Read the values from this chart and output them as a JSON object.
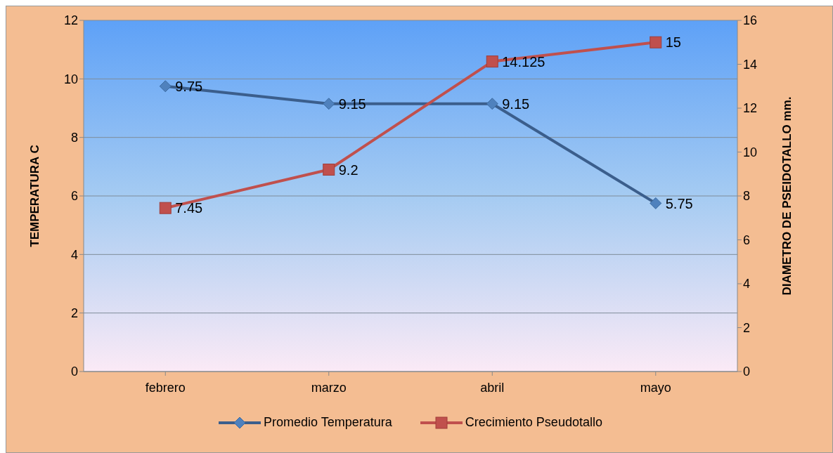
{
  "chart_data": {
    "type": "line",
    "categories": [
      "febrero",
      "marzo",
      "abril",
      "mayo"
    ],
    "series": [
      {
        "name": "Promedio Temperatura",
        "color": "#3b5e8c",
        "values": [
          9.75,
          9.15,
          9.15,
          5.75
        ],
        "marker": "diamond"
      },
      {
        "name": "Crecimiento Pseudotallo",
        "color": "#c0504d",
        "values": [
          7.45,
          9.2,
          14.125,
          15
        ],
        "axis": "y2",
        "marker": "square"
      }
    ],
    "ylabel": "TEMPERATURA C",
    "y2label": "DIAMETRO DE PSEIDOTALLO mm.",
    "ylim": [
      0,
      12
    ],
    "yticks": [
      0,
      2,
      4,
      6,
      8,
      10,
      12
    ],
    "y2lim": [
      0,
      16
    ],
    "y2ticks": [
      0,
      2,
      4,
      6,
      8,
      10,
      12,
      14,
      16
    ],
    "grid": "y",
    "legend": "bottom",
    "data_labels": true
  }
}
